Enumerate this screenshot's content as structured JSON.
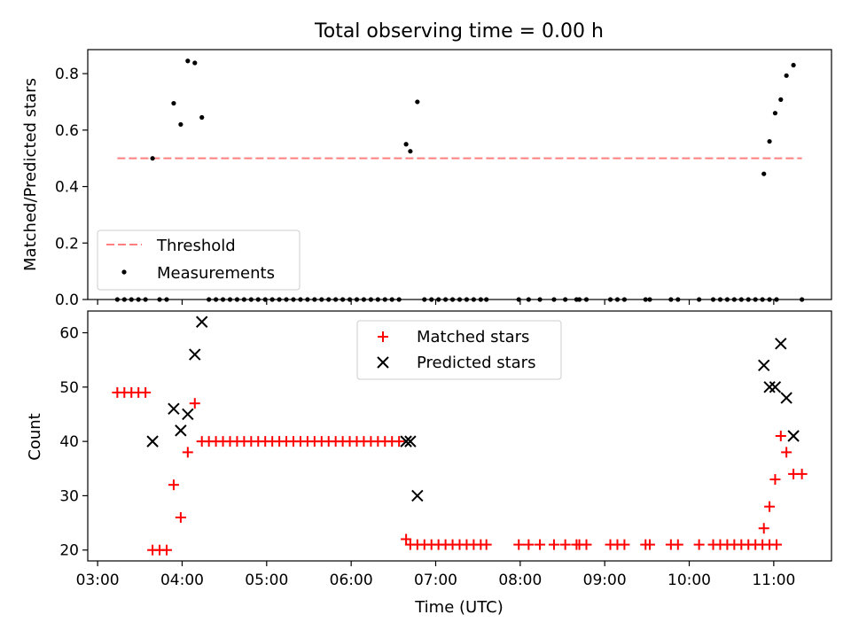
{
  "chart_data": [
    {
      "type": "scatter",
      "title": "Total observing time = 0.00 h",
      "ylabel": "Matched/Predicted stars",
      "xlabel": "",
      "xlim": [
        "02:53",
        "11:41"
      ],
      "ylim": [
        0,
        0.885
      ],
      "yticks": [
        "0.0",
        "0.2",
        "0.4",
        "0.6",
        "0.8"
      ],
      "xtick_times": [
        "03:00",
        "04:00",
        "05:00",
        "06:00",
        "07:00",
        "08:00",
        "09:00",
        "10:00",
        "11:00"
      ],
      "legend_position": "lower-left",
      "threshold": {
        "name": "Threshold",
        "value": 0.5,
        "x_start": "03:14",
        "x_end": "11:20",
        "color": "#ff7f7f"
      },
      "series": [
        {
          "name": "Measurements",
          "color": "#000000",
          "points": [
            [
              "03:14",
              0
            ],
            [
              "03:19",
              0
            ],
            [
              "03:24",
              0
            ],
            [
              "03:29",
              0
            ],
            [
              "03:34",
              0
            ],
            [
              "03:39",
              0.5
            ],
            [
              "03:44",
              0
            ],
            [
              "03:49",
              0
            ],
            [
              "03:54",
              0.695
            ],
            [
              "03:59",
              0.62
            ],
            [
              "04:04",
              0.845
            ],
            [
              "04:09",
              0.838
            ],
            [
              "04:14",
              0.645
            ],
            [
              "04:19",
              0
            ],
            [
              "04:24",
              0
            ],
            [
              "04:29",
              0
            ],
            [
              "04:34",
              0
            ],
            [
              "04:39",
              0
            ],
            [
              "04:44",
              0
            ],
            [
              "04:49",
              0
            ],
            [
              "04:54",
              0
            ],
            [
              "04:59",
              0
            ],
            [
              "05:04",
              0
            ],
            [
              "05:09",
              0
            ],
            [
              "05:14",
              0
            ],
            [
              "05:19",
              0
            ],
            [
              "05:24",
              0
            ],
            [
              "05:29",
              0
            ],
            [
              "05:34",
              0
            ],
            [
              "05:39",
              0
            ],
            [
              "05:44",
              0
            ],
            [
              "05:49",
              0
            ],
            [
              "05:54",
              0
            ],
            [
              "05:59",
              0
            ],
            [
              "06:04",
              0
            ],
            [
              "06:09",
              0
            ],
            [
              "06:14",
              0
            ],
            [
              "06:19",
              0
            ],
            [
              "06:24",
              0
            ],
            [
              "06:29",
              0
            ],
            [
              "06:34",
              0
            ],
            [
              "06:39",
              0.55
            ],
            [
              "06:42",
              0.525
            ],
            [
              "06:47",
              0.7
            ],
            [
              "06:52",
              0
            ],
            [
              "06:57",
              0
            ],
            [
              "07:02",
              0
            ],
            [
              "07:07",
              0
            ],
            [
              "07:12",
              0
            ],
            [
              "07:17",
              0
            ],
            [
              "07:22",
              0
            ],
            [
              "07:27",
              0
            ],
            [
              "07:32",
              0
            ],
            [
              "07:36",
              0
            ],
            [
              "07:59",
              0
            ],
            [
              "08:06",
              0
            ],
            [
              "08:14",
              0
            ],
            [
              "08:24",
              0
            ],
            [
              "08:32",
              0
            ],
            [
              "08:40",
              0
            ],
            [
              "08:42",
              0
            ],
            [
              "08:47",
              0
            ],
            [
              "09:04",
              0
            ],
            [
              "09:09",
              0
            ],
            [
              "09:14",
              0
            ],
            [
              "09:29",
              0
            ],
            [
              "09:32",
              0
            ],
            [
              "09:47",
              0
            ],
            [
              "09:52",
              0
            ],
            [
              "10:07",
              0
            ],
            [
              "10:17",
              0
            ],
            [
              "10:22",
              0
            ],
            [
              "10:27",
              0
            ],
            [
              "10:32",
              0
            ],
            [
              "10:37",
              0
            ],
            [
              "10:42",
              0
            ],
            [
              "10:47",
              0
            ],
            [
              "10:52",
              0
            ],
            [
              "10:57",
              0
            ],
            [
              "11:02",
              0
            ],
            [
              "10:53",
              0.445
            ],
            [
              "10:57",
              0.56
            ],
            [
              "11:01",
              0.66
            ],
            [
              "11:05",
              0.708
            ],
            [
              "11:09",
              0.793
            ],
            [
              "11:14",
              0.83
            ],
            [
              "11:20",
              0
            ]
          ]
        }
      ]
    },
    {
      "type": "scatter",
      "title": "",
      "ylabel": "Count",
      "xlabel": "Time (UTC)",
      "xlim": [
        "02:53",
        "11:41"
      ],
      "ylim": [
        18,
        64
      ],
      "yticks": [
        20,
        30,
        40,
        50,
        60
      ],
      "xticks": [
        "03:00",
        "04:00",
        "05:00",
        "06:00",
        "07:00",
        "08:00",
        "09:00",
        "10:00",
        "11:00"
      ],
      "legend_position": "upper-center",
      "series": [
        {
          "name": "Matched stars",
          "marker": "plus",
          "color": "#ff0000",
          "points": [
            [
              "03:14",
              49
            ],
            [
              "03:19",
              49
            ],
            [
              "03:24",
              49
            ],
            [
              "03:29",
              49
            ],
            [
              "03:34",
              49
            ],
            [
              "03:39",
              20
            ],
            [
              "03:44",
              20
            ],
            [
              "03:49",
              20
            ],
            [
              "03:54",
              32
            ],
            [
              "03:59",
              26
            ],
            [
              "04:04",
              38
            ],
            [
              "04:09",
              47
            ],
            [
              "04:14",
              40
            ],
            [
              "04:19",
              40
            ],
            [
              "04:24",
              40
            ],
            [
              "04:29",
              40
            ],
            [
              "04:34",
              40
            ],
            [
              "04:39",
              40
            ],
            [
              "04:44",
              40
            ],
            [
              "04:49",
              40
            ],
            [
              "04:54",
              40
            ],
            [
              "04:59",
              40
            ],
            [
              "05:04",
              40
            ],
            [
              "05:09",
              40
            ],
            [
              "05:14",
              40
            ],
            [
              "05:19",
              40
            ],
            [
              "05:24",
              40
            ],
            [
              "05:29",
              40
            ],
            [
              "05:34",
              40
            ],
            [
              "05:39",
              40
            ],
            [
              "05:44",
              40
            ],
            [
              "05:49",
              40
            ],
            [
              "05:54",
              40
            ],
            [
              "05:59",
              40
            ],
            [
              "06:04",
              40
            ],
            [
              "06:09",
              40
            ],
            [
              "06:14",
              40
            ],
            [
              "06:19",
              40
            ],
            [
              "06:24",
              40
            ],
            [
              "06:29",
              40
            ],
            [
              "06:34",
              40
            ],
            [
              "06:39",
              22
            ],
            [
              "06:42",
              21
            ],
            [
              "06:47",
              21
            ],
            [
              "06:52",
              21
            ],
            [
              "06:57",
              21
            ],
            [
              "07:02",
              21
            ],
            [
              "07:07",
              21
            ],
            [
              "07:12",
              21
            ],
            [
              "07:17",
              21
            ],
            [
              "07:22",
              21
            ],
            [
              "07:27",
              21
            ],
            [
              "07:32",
              21
            ],
            [
              "07:36",
              21
            ],
            [
              "07:59",
              21
            ],
            [
              "08:06",
              21
            ],
            [
              "08:14",
              21
            ],
            [
              "08:24",
              21
            ],
            [
              "08:32",
              21
            ],
            [
              "08:40",
              21
            ],
            [
              "08:42",
              21
            ],
            [
              "08:47",
              21
            ],
            [
              "09:04",
              21
            ],
            [
              "09:09",
              21
            ],
            [
              "09:14",
              21
            ],
            [
              "09:29",
              21
            ],
            [
              "09:32",
              21
            ],
            [
              "09:47",
              21
            ],
            [
              "09:52",
              21
            ],
            [
              "10:07",
              21
            ],
            [
              "10:17",
              21
            ],
            [
              "10:22",
              21
            ],
            [
              "10:27",
              21
            ],
            [
              "10:32",
              21
            ],
            [
              "10:37",
              21
            ],
            [
              "10:42",
              21
            ],
            [
              "10:47",
              21
            ],
            [
              "10:52",
              21
            ],
            [
              "10:57",
              21
            ],
            [
              "11:02",
              21
            ],
            [
              "10:53",
              24
            ],
            [
              "10:57",
              28
            ],
            [
              "11:01",
              33
            ],
            [
              "11:05",
              41
            ],
            [
              "11:09",
              38
            ],
            [
              "11:14",
              34
            ],
            [
              "11:20",
              34
            ]
          ]
        },
        {
          "name": "Predicted stars",
          "marker": "x",
          "color": "#000000",
          "points": [
            [
              "03:39",
              40
            ],
            [
              "03:54",
              46
            ],
            [
              "03:59",
              42
            ],
            [
              "04:04",
              45
            ],
            [
              "04:09",
              56
            ],
            [
              "04:14",
              62
            ],
            [
              "06:39",
              40
            ],
            [
              "06:42",
              40
            ],
            [
              "06:47",
              30
            ],
            [
              "10:53",
              54
            ],
            [
              "10:57",
              50
            ],
            [
              "11:01",
              50
            ],
            [
              "11:05",
              58
            ],
            [
              "11:09",
              48
            ],
            [
              "11:14",
              41
            ]
          ]
        }
      ]
    }
  ]
}
